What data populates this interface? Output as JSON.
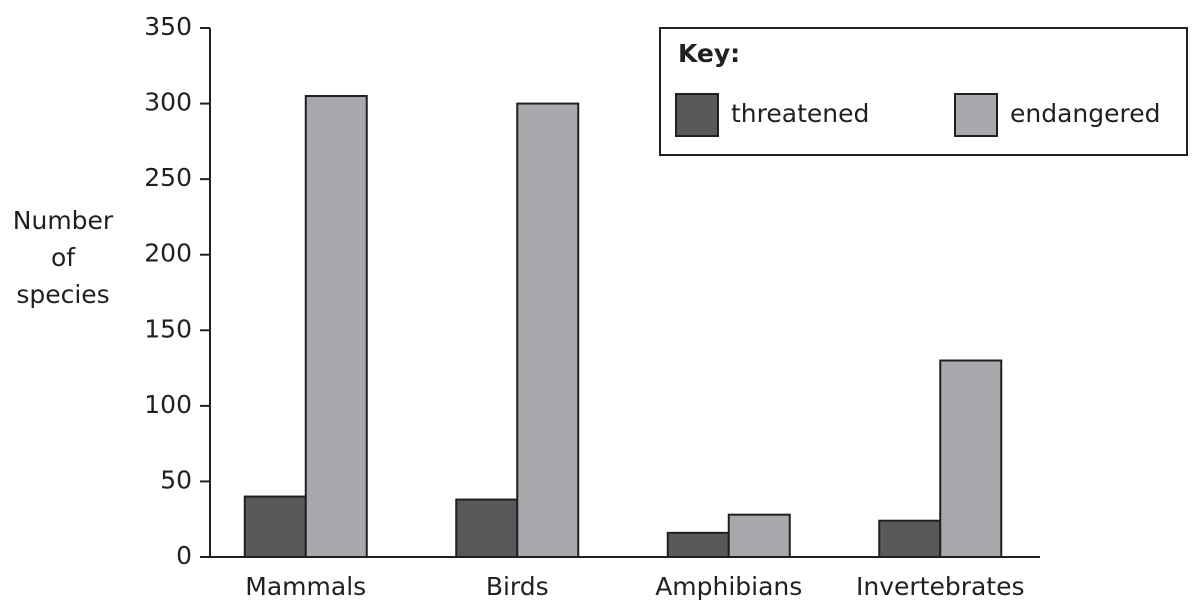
{
  "chart_data": {
    "type": "bar",
    "y_label": "Number of species",
    "legend_title": "Key:",
    "categories": [
      "Mammals",
      "Birds",
      "Amphibians",
      "Invertebrates"
    ],
    "series": [
      {
        "name": "threatened",
        "color": "#58595b",
        "values": [
          40,
          38,
          16,
          24
        ]
      },
      {
        "name": "endangered",
        "color": "#a7a9ac",
        "values": [
          305,
          300,
          28,
          130
        ]
      }
    ],
    "ylim": [
      0,
      350
    ],
    "yticks": [
      0,
      50,
      100,
      150,
      200,
      250,
      300,
      350
    ],
    "legend": "upper right"
  }
}
